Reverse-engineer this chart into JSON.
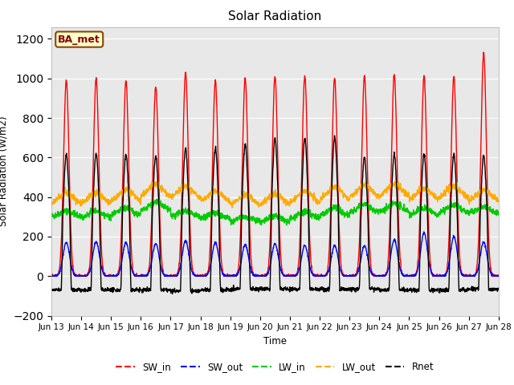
{
  "title": "Solar Radiation",
  "ylabel": "Solar Radiation (W/m2)",
  "xlabel": "Time",
  "site_label": "BA_met",
  "ylim": [
    -200,
    1260
  ],
  "yticks": [
    -200,
    0,
    200,
    400,
    600,
    800,
    1000,
    1200
  ],
  "x_tick_labels": [
    "Jun 13",
    "Jun 14",
    "Jun 15",
    "Jun 16",
    "Jun 17",
    "Jun 18",
    "Jun 19",
    "Jun 20",
    "Jun 21",
    "Jun 22",
    "Jun 23",
    "Jun 24",
    "Jun 25",
    "Jun 26",
    "Jun 27",
    "Jun 28"
  ],
  "colors": {
    "SW_in": "#ff0000",
    "SW_out": "#0000ff",
    "LW_in": "#00cc00",
    "LW_out": "#ffaa00",
    "Rnet": "#000000"
  },
  "fig_bg_color": "#ffffff",
  "plot_bg_color": "#e8e8e8",
  "num_days": 15,
  "pts_per_day": 144,
  "sw_in_peaks": [
    990,
    1000,
    990,
    960,
    1030,
    990,
    1000,
    1010,
    1010,
    1000,
    1010,
    1020,
    1010,
    1010,
    1130
  ],
  "sw_out_peaks": [
    170,
    175,
    170,
    165,
    180,
    170,
    160,
    165,
    155,
    155,
    155,
    185,
    220,
    200,
    175
  ],
  "lw_in_base": [
    300,
    295,
    305,
    330,
    300,
    290,
    275,
    275,
    290,
    305,
    320,
    325,
    305,
    320,
    315
  ],
  "lw_in_amp": [
    30,
    35,
    40,
    45,
    30,
    30,
    25,
    30,
    35,
    40,
    45,
    45,
    40,
    40,
    35
  ],
  "lw_out_base": [
    360,
    360,
    370,
    395,
    390,
    370,
    355,
    355,
    365,
    380,
    390,
    395,
    380,
    390,
    375
  ],
  "lw_out_amp": [
    60,
    60,
    65,
    70,
    65,
    60,
    55,
    60,
    65,
    70,
    70,
    70,
    65,
    65,
    60
  ],
  "rnet_day_peaks": [
    615,
    620,
    615,
    605,
    645,
    645,
    665,
    695,
    700,
    700,
    600,
    615,
    615,
    615,
    610
  ],
  "rnet_night": [
    -70,
    -70,
    -70,
    -70,
    -75,
    -70,
    -65,
    -65,
    -65,
    -65,
    -65,
    -70,
    -70,
    -70,
    -65
  ]
}
